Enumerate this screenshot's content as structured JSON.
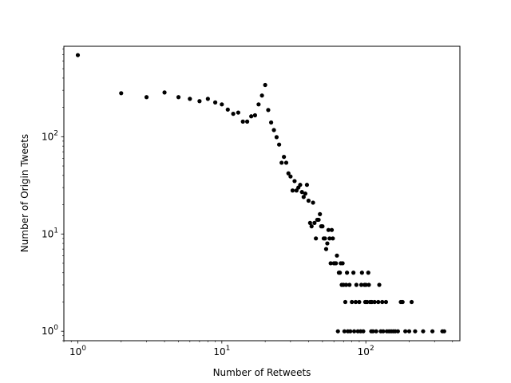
{
  "chart_data": {
    "type": "scatter",
    "xscale": "log",
    "yscale": "log",
    "xlabel": "Number of Retweets",
    "ylabel": "Number of Origin Tweets",
    "xlim": [
      0.8,
      450
    ],
    "ylim": [
      0.8,
      850
    ],
    "grid": false,
    "marker_color": "#000000",
    "x_ticks": [
      {
        "value": 1,
        "base": "10",
        "exp": "0"
      },
      {
        "value": 10,
        "base": "10",
        "exp": "1"
      },
      {
        "value": 100,
        "base": "10",
        "exp": "2"
      }
    ],
    "y_ticks": [
      {
        "value": 1,
        "base": "10",
        "exp": "0"
      },
      {
        "value": 10,
        "base": "10",
        "exp": "1"
      },
      {
        "value": 100,
        "base": "10",
        "exp": "2"
      }
    ],
    "points": [
      [
        1,
        690
      ],
      [
        2,
        280
      ],
      [
        3,
        255
      ],
      [
        4,
        285
      ],
      [
        5,
        255
      ],
      [
        6,
        245
      ],
      [
        7,
        232
      ],
      [
        8,
        245
      ],
      [
        9,
        225
      ],
      [
        10,
        215
      ],
      [
        11,
        190
      ],
      [
        12,
        172
      ],
      [
        13,
        177
      ],
      [
        14,
        143
      ],
      [
        15,
        143
      ],
      [
        16,
        162
      ],
      [
        17,
        166
      ],
      [
        18,
        215
      ],
      [
        19,
        265
      ],
      [
        20,
        340
      ],
      [
        21,
        188
      ],
      [
        22,
        140
      ],
      [
        23,
        117
      ],
      [
        24,
        99
      ],
      [
        25,
        83
      ],
      [
        26,
        54
      ],
      [
        27,
        62
      ],
      [
        28,
        54
      ],
      [
        29,
        42
      ],
      [
        30,
        39
      ],
      [
        31,
        28
      ],
      [
        32,
        35
      ],
      [
        33,
        28
      ],
      [
        34,
        30
      ],
      [
        35,
        32
      ],
      [
        36,
        27
      ],
      [
        37,
        24
      ],
      [
        38,
        26
      ],
      [
        39,
        32
      ],
      [
        40,
        22
      ],
      [
        41,
        13
      ],
      [
        42,
        12
      ],
      [
        43,
        21
      ],
      [
        44,
        13
      ],
      [
        45,
        9
      ],
      [
        46,
        14
      ],
      [
        47,
        14
      ],
      [
        48,
        16
      ],
      [
        49,
        12
      ],
      [
        50,
        12
      ],
      [
        51,
        9
      ],
      [
        52,
        9
      ],
      [
        53,
        7
      ],
      [
        54,
        8
      ],
      [
        55,
        11
      ],
      [
        56,
        9
      ],
      [
        57,
        5
      ],
      [
        58,
        11
      ],
      [
        59,
        9
      ],
      [
        60,
        5
      ],
      [
        61,
        5
      ],
      [
        62,
        5
      ],
      [
        63,
        6
      ],
      [
        64,
        1
      ],
      [
        65,
        4
      ],
      [
        66,
        4
      ],
      [
        67,
        5
      ],
      [
        68,
        3
      ],
      [
        69,
        5
      ],
      [
        70,
        3
      ],
      [
        71,
        1
      ],
      [
        72,
        2
      ],
      [
        73,
        3
      ],
      [
        74,
        4
      ],
      [
        75,
        1
      ],
      [
        77,
        3
      ],
      [
        78,
        1
      ],
      [
        80,
        2
      ],
      [
        82,
        4
      ],
      [
        83,
        1
      ],
      [
        85,
        2
      ],
      [
        86,
        3
      ],
      [
        88,
        1
      ],
      [
        90,
        2
      ],
      [
        92,
        1
      ],
      [
        93,
        3
      ],
      [
        94,
        4
      ],
      [
        96,
        1
      ],
      [
        98,
        3
      ],
      [
        99,
        2
      ],
      [
        100,
        3
      ],
      [
        102,
        2
      ],
      [
        104,
        4
      ],
      [
        105,
        3
      ],
      [
        107,
        2
      ],
      [
        109,
        1
      ],
      [
        110,
        2
      ],
      [
        112,
        1
      ],
      [
        115,
        2
      ],
      [
        118,
        1
      ],
      [
        122,
        2
      ],
      [
        124,
        3
      ],
      [
        127,
        1
      ],
      [
        130,
        2
      ],
      [
        132,
        1
      ],
      [
        138,
        2
      ],
      [
        140,
        1
      ],
      [
        145,
        1
      ],
      [
        150,
        1
      ],
      [
        155,
        1
      ],
      [
        160,
        1
      ],
      [
        167,
        1
      ],
      [
        175,
        2
      ],
      [
        180,
        2
      ],
      [
        188,
        1
      ],
      [
        200,
        1
      ],
      [
        208,
        2
      ],
      [
        220,
        1
      ],
      [
        250,
        1
      ],
      [
        290,
        1
      ],
      [
        340,
        1
      ],
      [
        350,
        1
      ]
    ]
  }
}
